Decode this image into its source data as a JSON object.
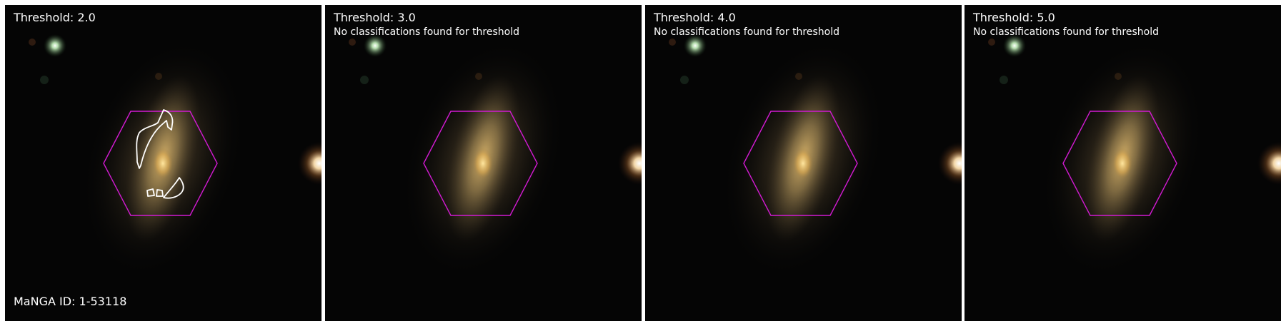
{
  "figure": {
    "manga_id_label": "MaNGA ID: 1-53118",
    "panels": [
      {
        "threshold_label": "Threshold: 2.0",
        "note": ""
      },
      {
        "threshold_label": "Threshold: 3.0",
        "note": "No classifications found for threshold"
      },
      {
        "threshold_label": "Threshold: 4.0",
        "note": "No classifications found for threshold"
      },
      {
        "threshold_label": "Threshold: 5.0",
        "note": "No classifications found for threshold"
      }
    ],
    "colors": {
      "hexagon": "#d21ad2",
      "contour": "#ffffff",
      "background": "#050505",
      "galaxy_core": "#f2c36a"
    }
  }
}
